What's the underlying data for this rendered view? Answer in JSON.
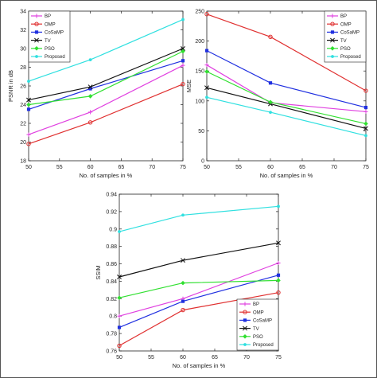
{
  "colors": {
    "BP": "#e040e0",
    "OMP": "#e03030",
    "CoSaMP": "#2030e0",
    "TV": "#111111",
    "PSO": "#30e030",
    "Proposed": "#30e0e0"
  },
  "markers": {
    "BP": "plus",
    "OMP": "circle",
    "CoSaMP": "square",
    "TV": "x",
    "PSO": "diamond",
    "Proposed": "dot"
  },
  "chart_data": [
    {
      "type": "line",
      "xlabel": "No. of samples in %",
      "ylabel": "PSNR in dB",
      "x": [
        50,
        60,
        75
      ],
      "xlim": [
        50,
        75
      ],
      "ylim": [
        18,
        34
      ],
      "xticks": [
        "50",
        "55",
        "60",
        "65",
        "70",
        "75"
      ],
      "yticks": [
        "18",
        "20",
        "22",
        "24",
        "26",
        "28",
        "30",
        "32",
        "34"
      ],
      "grid": false,
      "legend": "top-left",
      "series": [
        {
          "name": "BP",
          "values": [
            20.8,
            23.2,
            28.2
          ]
        },
        {
          "name": "OMP",
          "values": [
            19.8,
            22.1,
            26.2
          ]
        },
        {
          "name": "CoSaMP",
          "values": [
            23.5,
            25.7,
            28.7
          ]
        },
        {
          "name": "TV",
          "values": [
            24.5,
            25.9,
            30.0
          ]
        },
        {
          "name": "PSO",
          "values": [
            24.0,
            24.9,
            29.7
          ]
        },
        {
          "name": "Proposed",
          "values": [
            26.5,
            28.8,
            33.1
          ]
        }
      ]
    },
    {
      "type": "line",
      "xlabel": "No. of samples in %",
      "ylabel": "MSE",
      "x": [
        50,
        60,
        75
      ],
      "xlim": [
        50,
        75
      ],
      "ylim": [
        0,
        250
      ],
      "xticks": [
        "50",
        "55",
        "60",
        "65",
        "70",
        "75"
      ],
      "yticks": [
        "0",
        "50",
        "100",
        "150",
        "200",
        "250"
      ],
      "grid": false,
      "legend": "top-right",
      "series": [
        {
          "name": "BP",
          "values": [
            160,
            97,
            82
          ]
        },
        {
          "name": "OMP",
          "values": [
            245,
            207,
            117
          ]
        },
        {
          "name": "CoSaMP",
          "values": [
            184,
            130,
            89
          ]
        },
        {
          "name": "TV",
          "values": [
            122,
            95,
            54
          ]
        },
        {
          "name": "PSO",
          "values": [
            149,
            98,
            62
          ]
        },
        {
          "name": "Proposed",
          "values": [
            106,
            81,
            42
          ]
        }
      ]
    },
    {
      "type": "line",
      "xlabel": "No. of samples in %",
      "ylabel": "SSIM",
      "x": [
        50,
        60,
        75
      ],
      "xlim": [
        50,
        75
      ],
      "ylim": [
        0.76,
        0.94
      ],
      "xticks": [
        "50",
        "55",
        "60",
        "65",
        "70",
        "75"
      ],
      "yticks": [
        "0.76",
        "0.78",
        "0.8",
        "0.82",
        "0.84",
        "0.86",
        "0.88",
        "0.9",
        "0.92",
        "0.94"
      ],
      "grid": false,
      "legend": "bottom-right",
      "series": [
        {
          "name": "BP",
          "values": [
            0.8,
            0.82,
            0.861
          ]
        },
        {
          "name": "OMP",
          "values": [
            0.766,
            0.807,
            0.827
          ]
        },
        {
          "name": "CoSaMP",
          "values": [
            0.787,
            0.817,
            0.847
          ]
        },
        {
          "name": "TV",
          "values": [
            0.845,
            0.864,
            0.884
          ]
        },
        {
          "name": "PSO",
          "values": [
            0.821,
            0.838,
            0.841
          ]
        },
        {
          "name": "Proposed",
          "values": [
            0.897,
            0.916,
            0.926
          ]
        }
      ]
    }
  ]
}
